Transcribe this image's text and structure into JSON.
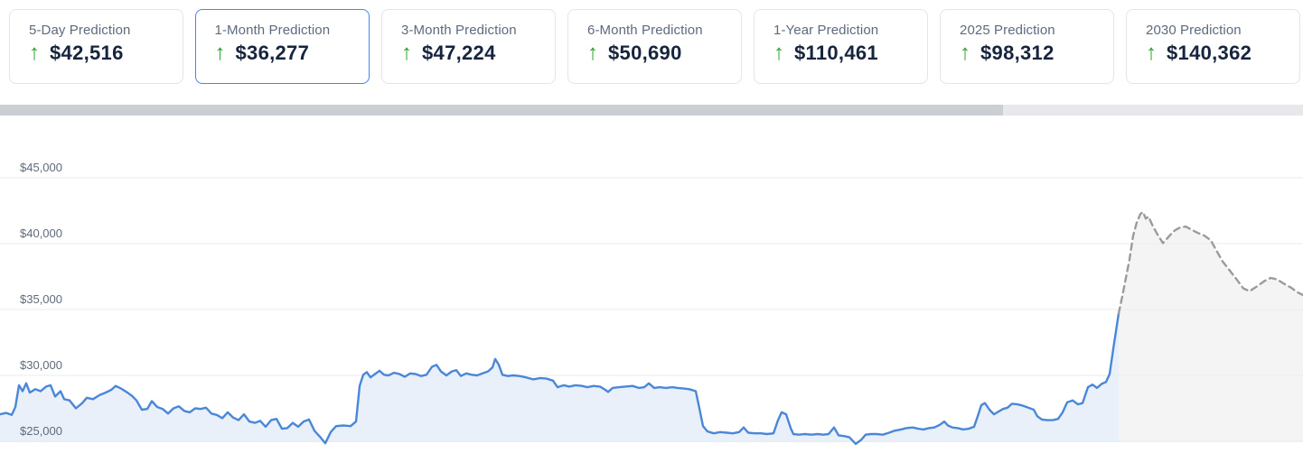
{
  "icons": {
    "up_arrow": "↑"
  },
  "colors": {
    "selected_card_border": "#4285f4",
    "card_border": "#e3e5e9",
    "card_label_text": "#5d6b7e",
    "card_value_text": "#16253d",
    "up_arrow_green": "#2fa32f",
    "scrollbar_track": "#e7e8eb",
    "scrollbar_thumb": "#cbced3",
    "grid_line": "#e9ebef",
    "history_line": "#4a87d9",
    "history_fill": "#e9f0fa",
    "prediction_line": "#9b9b9b",
    "prediction_fill": "#f4f4f5"
  },
  "cards": {
    "selected_index": 1,
    "items": [
      {
        "label": "5-Day Prediction",
        "value": "$42,516",
        "direction": "up"
      },
      {
        "label": "1-Month Prediction",
        "value": "$36,277",
        "direction": "up"
      },
      {
        "label": "3-Month Prediction",
        "value": "$47,224",
        "direction": "up"
      },
      {
        "label": "6-Month Prediction",
        "value": "$50,690",
        "direction": "up"
      },
      {
        "label": "1-Year Prediction",
        "value": "$110,461",
        "direction": "up"
      },
      {
        "label": "2025 Prediction",
        "value": "$98,312",
        "direction": "up"
      },
      {
        "label": "2030 Prediction",
        "value": "$140,362",
        "direction": "up"
      }
    ]
  },
  "scrollbar": {
    "thumb_percent": 77
  },
  "chart_data": {
    "type": "area",
    "title": "",
    "xlabel": "",
    "ylabel": "",
    "x_unit": "pixel_column",
    "grid": "horizontal",
    "legend": "none",
    "ylim": [
      25000,
      45000
    ],
    "y_ticks": [
      {
        "label": "$45,000",
        "value": 45000
      },
      {
        "label": "$40,000",
        "value": 40000
      },
      {
        "label": "$35,000",
        "value": 35000
      },
      {
        "label": "$30,000",
        "value": 30000
      },
      {
        "label": "$25,000",
        "value": 25000
      }
    ],
    "series": [
      {
        "name": "history",
        "line_style": "solid",
        "color": "#4a87d9",
        "fill_color": "#e9f0fa",
        "points": [
          [
            0,
            27050
          ],
          [
            7,
            27150
          ],
          [
            13,
            27000
          ],
          [
            17,
            27600
          ],
          [
            21,
            29250
          ],
          [
            25,
            28800
          ],
          [
            29,
            29400
          ],
          [
            33,
            28700
          ],
          [
            39,
            28950
          ],
          [
            45,
            28800
          ],
          [
            51,
            29150
          ],
          [
            56,
            29250
          ],
          [
            61,
            28400
          ],
          [
            67,
            28800
          ],
          [
            71,
            28200
          ],
          [
            77,
            28100
          ],
          [
            84,
            27500
          ],
          [
            91,
            27900
          ],
          [
            96,
            28300
          ],
          [
            103,
            28200
          ],
          [
            110,
            28500
          ],
          [
            117,
            28700
          ],
          [
            123,
            28900
          ],
          [
            128,
            29200
          ],
          [
            134,
            29000
          ],
          [
            140,
            28750
          ],
          [
            146,
            28450
          ],
          [
            151,
            28100
          ],
          [
            157,
            27400
          ],
          [
            163,
            27450
          ],
          [
            168,
            28050
          ],
          [
            174,
            27600
          ],
          [
            180,
            27450
          ],
          [
            186,
            27100
          ],
          [
            192,
            27500
          ],
          [
            198,
            27650
          ],
          [
            204,
            27300
          ],
          [
            210,
            27200
          ],
          [
            216,
            27500
          ],
          [
            222,
            27450
          ],
          [
            228,
            27550
          ],
          [
            234,
            27100
          ],
          [
            240,
            27000
          ],
          [
            246,
            26750
          ],
          [
            252,
            27200
          ],
          [
            258,
            26800
          ],
          [
            264,
            26600
          ],
          [
            270,
            27050
          ],
          [
            276,
            26500
          ],
          [
            282,
            26400
          ],
          [
            288,
            26550
          ],
          [
            294,
            26100
          ],
          [
            300,
            26600
          ],
          [
            306,
            26700
          ],
          [
            312,
            25950
          ],
          [
            318,
            26000
          ],
          [
            324,
            26400
          ],
          [
            330,
            26100
          ],
          [
            336,
            26500
          ],
          [
            342,
            26650
          ],
          [
            348,
            25800
          ],
          [
            354,
            25350
          ],
          [
            360,
            24850
          ],
          [
            366,
            25700
          ],
          [
            372,
            26150
          ],
          [
            380,
            26200
          ],
          [
            388,
            26150
          ],
          [
            394,
            26500
          ],
          [
            398,
            29200
          ],
          [
            402,
            30050
          ],
          [
            406,
            30250
          ],
          [
            410,
            29850
          ],
          [
            415,
            30100
          ],
          [
            420,
            30350
          ],
          [
            425,
            30050
          ],
          [
            430,
            30000
          ],
          [
            436,
            30200
          ],
          [
            442,
            30100
          ],
          [
            448,
            29900
          ],
          [
            454,
            30150
          ],
          [
            460,
            30100
          ],
          [
            466,
            29950
          ],
          [
            472,
            30050
          ],
          [
            478,
            30650
          ],
          [
            483,
            30800
          ],
          [
            488,
            30300
          ],
          [
            494,
            30000
          ],
          [
            500,
            30300
          ],
          [
            505,
            30400
          ],
          [
            510,
            29950
          ],
          [
            516,
            30150
          ],
          [
            522,
            30050
          ],
          [
            528,
            30000
          ],
          [
            534,
            30150
          ],
          [
            540,
            30300
          ],
          [
            545,
            30600
          ],
          [
            548,
            31250
          ],
          [
            552,
            30800
          ],
          [
            556,
            30050
          ],
          [
            562,
            29950
          ],
          [
            568,
            30000
          ],
          [
            575,
            29950
          ],
          [
            582,
            29850
          ],
          [
            590,
            29700
          ],
          [
            598,
            29800
          ],
          [
            605,
            29750
          ],
          [
            612,
            29600
          ],
          [
            617,
            29100
          ],
          [
            624,
            29250
          ],
          [
            630,
            29150
          ],
          [
            637,
            29250
          ],
          [
            644,
            29200
          ],
          [
            650,
            29100
          ],
          [
            657,
            29200
          ],
          [
            664,
            29150
          ],
          [
            670,
            28900
          ],
          [
            673,
            28750
          ],
          [
            678,
            29050
          ],
          [
            685,
            29100
          ],
          [
            692,
            29150
          ],
          [
            700,
            29200
          ],
          [
            707,
            29050
          ],
          [
            713,
            29100
          ],
          [
            718,
            29400
          ],
          [
            724,
            29050
          ],
          [
            730,
            29100
          ],
          [
            737,
            29050
          ],
          [
            744,
            29100
          ],
          [
            750,
            29050
          ],
          [
            757,
            29000
          ],
          [
            763,
            28950
          ],
          [
            770,
            28800
          ],
          [
            774,
            27500
          ],
          [
            778,
            26150
          ],
          [
            783,
            25750
          ],
          [
            790,
            25600
          ],
          [
            797,
            25700
          ],
          [
            804,
            25650
          ],
          [
            811,
            25600
          ],
          [
            818,
            25700
          ],
          [
            823,
            26050
          ],
          [
            828,
            25650
          ],
          [
            835,
            25600
          ],
          [
            842,
            25600
          ],
          [
            849,
            25550
          ],
          [
            856,
            25600
          ],
          [
            861,
            26600
          ],
          [
            865,
            27200
          ],
          [
            870,
            27050
          ],
          [
            875,
            26000
          ],
          [
            878,
            25550
          ],
          [
            884,
            25500
          ],
          [
            891,
            25550
          ],
          [
            898,
            25500
          ],
          [
            905,
            25550
          ],
          [
            911,
            25500
          ],
          [
            917,
            25550
          ],
          [
            923,
            26050
          ],
          [
            928,
            25450
          ],
          [
            934,
            25400
          ],
          [
            940,
            25300
          ],
          [
            947,
            24800
          ],
          [
            953,
            25100
          ],
          [
            958,
            25500
          ],
          [
            964,
            25550
          ],
          [
            970,
            25550
          ],
          [
            977,
            25500
          ],
          [
            984,
            25650
          ],
          [
            990,
            25800
          ],
          [
            997,
            25900
          ],
          [
            1003,
            26000
          ],
          [
            1010,
            26050
          ],
          [
            1016,
            25950
          ],
          [
            1022,
            25900
          ],
          [
            1028,
            26000
          ],
          [
            1034,
            26050
          ],
          [
            1040,
            26250
          ],
          [
            1045,
            26500
          ],
          [
            1049,
            26200
          ],
          [
            1054,
            26050
          ],
          [
            1060,
            26000
          ],
          [
            1066,
            25900
          ],
          [
            1072,
            25950
          ],
          [
            1078,
            26100
          ],
          [
            1082,
            26900
          ],
          [
            1086,
            27750
          ],
          [
            1090,
            27900
          ],
          [
            1095,
            27400
          ],
          [
            1100,
            27050
          ],
          [
            1105,
            27250
          ],
          [
            1110,
            27450
          ],
          [
            1115,
            27550
          ],
          [
            1120,
            27850
          ],
          [
            1126,
            27800
          ],
          [
            1132,
            27700
          ],
          [
            1138,
            27550
          ],
          [
            1144,
            27400
          ],
          [
            1148,
            26900
          ],
          [
            1153,
            26650
          ],
          [
            1159,
            26600
          ],
          [
            1165,
            26600
          ],
          [
            1171,
            26700
          ],
          [
            1176,
            27200
          ],
          [
            1181,
            27950
          ],
          [
            1187,
            28100
          ],
          [
            1193,
            27800
          ],
          [
            1198,
            27900
          ],
          [
            1204,
            29100
          ],
          [
            1209,
            29300
          ],
          [
            1214,
            29050
          ],
          [
            1219,
            29350
          ],
          [
            1224,
            29500
          ],
          [
            1228,
            30100
          ],
          [
            1232,
            32000
          ],
          [
            1238,
            34700
          ]
        ]
      },
      {
        "name": "prediction",
        "line_style": "dashed",
        "color": "#9b9b9b",
        "fill_color": "#f4f4f5",
        "points": [
          [
            1238,
            34700
          ],
          [
            1242,
            36000
          ],
          [
            1246,
            37400
          ],
          [
            1250,
            38800
          ],
          [
            1254,
            40600
          ],
          [
            1258,
            41600
          ],
          [
            1262,
            42250
          ],
          [
            1265,
            42400
          ],
          [
            1268,
            41900
          ],
          [
            1271,
            42050
          ],
          [
            1276,
            41300
          ],
          [
            1281,
            40700
          ],
          [
            1287,
            40050
          ],
          [
            1293,
            40500
          ],
          [
            1299,
            40950
          ],
          [
            1305,
            41200
          ],
          [
            1312,
            41300
          ],
          [
            1319,
            41050
          ],
          [
            1326,
            40800
          ],
          [
            1333,
            40600
          ],
          [
            1340,
            40250
          ],
          [
            1346,
            39500
          ],
          [
            1353,
            38650
          ],
          [
            1361,
            37950
          ],
          [
            1369,
            37250
          ],
          [
            1376,
            36600
          ],
          [
            1383,
            36400
          ],
          [
            1391,
            36750
          ],
          [
            1399,
            37150
          ],
          [
            1406,
            37400
          ],
          [
            1413,
            37300
          ],
          [
            1421,
            36950
          ],
          [
            1429,
            36650
          ],
          [
            1436,
            36300
          ],
          [
            1442,
            36100
          ]
        ]
      }
    ]
  }
}
